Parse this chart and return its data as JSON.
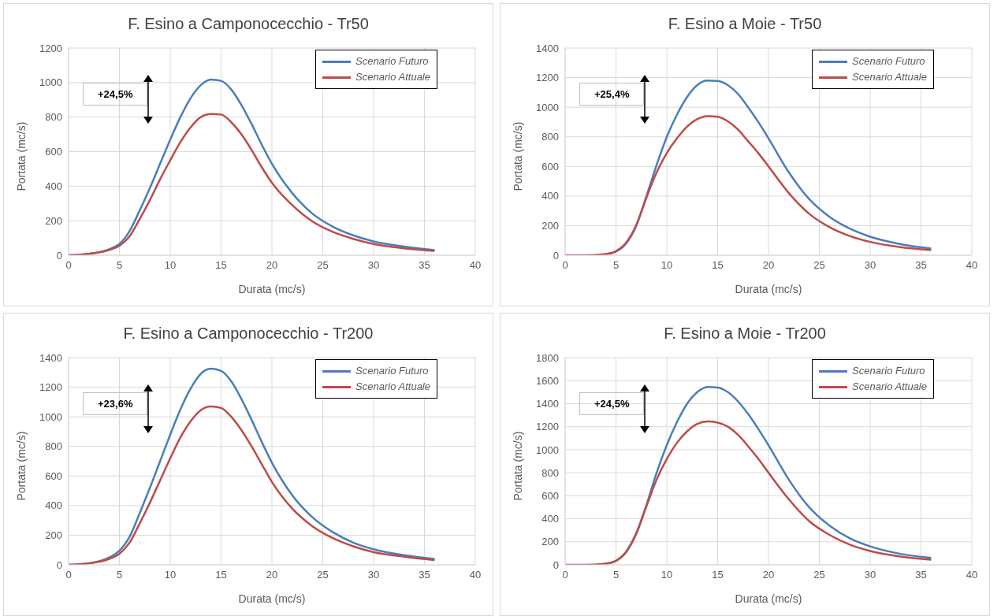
{
  "chart_data": [
    {
      "type": "line",
      "title": "F. Esino a Camponocecchio - Tr50",
      "xlabel": "Durata (mc/s)",
      "ylabel": "Portata (mc/s)",
      "x": [
        0,
        2,
        4,
        5,
        6,
        7,
        8,
        9,
        10,
        11,
        12,
        13,
        14,
        15,
        16,
        17,
        18,
        19,
        20,
        22,
        24,
        26,
        28,
        30,
        33,
        36
      ],
      "series": [
        {
          "name": "Scenario Futuro",
          "color": "#4a7ebb",
          "values": [
            0,
            8,
            35,
            65,
            140,
            260,
            390,
            530,
            670,
            800,
            910,
            985,
            1018,
            1010,
            960,
            870,
            760,
            640,
            530,
            360,
            240,
            165,
            115,
            80,
            50,
            30
          ]
        },
        {
          "name": "Scenario Attuale",
          "color": "#be4b48",
          "values": [
            0,
            8,
            30,
            55,
            110,
            210,
            320,
            440,
            550,
            655,
            740,
            800,
            818,
            815,
            770,
            700,
            610,
            510,
            420,
            290,
            195,
            135,
            95,
            65,
            40,
            25
          ]
        }
      ],
      "xlim": [
        0,
        40
      ],
      "xticks": [
        0,
        5,
        10,
        15,
        20,
        25,
        30,
        35,
        40
      ],
      "ylim": [
        0,
        1200
      ],
      "yticks": [
        0,
        200,
        400,
        600,
        800,
        1000,
        1200
      ],
      "grid": true,
      "legend": "top right",
      "annotations": [
        "+24,5%"
      ]
    },
    {
      "type": "line",
      "title": "F. Esino a Moie - Tr50",
      "xlabel": "Durata (mc/s)",
      "ylabel": "Portata (mc/s)",
      "x": [
        0,
        2,
        4,
        5,
        6,
        7,
        8,
        9,
        10,
        11,
        12,
        13,
        14,
        15,
        16,
        17,
        18,
        19,
        20,
        22,
        24,
        26,
        28,
        30,
        33,
        36
      ],
      "series": [
        {
          "name": "Scenario Futuro",
          "color": "#4a7ebb",
          "values": [
            null,
            null,
            8,
            25,
            80,
            200,
            400,
            610,
            800,
            950,
            1070,
            1150,
            1180,
            1178,
            1150,
            1090,
            1000,
            900,
            790,
            560,
            380,
            260,
            180,
            125,
            75,
            45
          ]
        },
        {
          "name": "Scenario Attuale",
          "color": "#be4b48",
          "values": [
            0,
            0,
            8,
            28,
            85,
            205,
            390,
            560,
            690,
            790,
            870,
            920,
            940,
            935,
            905,
            850,
            770,
            690,
            600,
            420,
            280,
            190,
            130,
            90,
            55,
            35
          ]
        }
      ],
      "xlim": [
        0,
        40
      ],
      "xticks": [
        0,
        5,
        10,
        15,
        20,
        25,
        30,
        35,
        40
      ],
      "ylim": [
        0,
        1400
      ],
      "yticks": [
        0,
        200,
        400,
        600,
        800,
        1000,
        1200,
        1400
      ],
      "grid": true,
      "legend": "top right",
      "annotations": [
        "+25,4%"
      ]
    },
    {
      "type": "line",
      "title": "F. Esino a Camponocecchio - Tr200",
      "xlabel": "Durata (mc/s)",
      "ylabel": "Portata (mc/s)",
      "x": [
        0,
        2,
        4,
        5,
        6,
        7,
        8,
        9,
        10,
        11,
        12,
        13,
        14,
        15,
        16,
        17,
        18,
        19,
        20,
        22,
        24,
        26,
        28,
        30,
        33,
        36
      ],
      "series": [
        {
          "name": "Scenario Futuro",
          "color": "#4a7ebb",
          "values": [
            0,
            10,
            50,
            95,
            190,
            350,
            520,
            700,
            880,
            1050,
            1190,
            1290,
            1325,
            1310,
            1240,
            1120,
            980,
            830,
            690,
            470,
            320,
            220,
            150,
            105,
            65,
            40
          ]
        },
        {
          "name": "Scenario Attuale",
          "color": "#be4b48",
          "values": [
            0,
            10,
            40,
            75,
            150,
            280,
            420,
            570,
            720,
            860,
            970,
            1045,
            1070,
            1060,
            1000,
            910,
            800,
            680,
            560,
            380,
            260,
            180,
            125,
            85,
            55,
            32
          ]
        }
      ],
      "xlim": [
        0,
        40
      ],
      "xticks": [
        0,
        5,
        10,
        15,
        20,
        25,
        30,
        35,
        40
      ],
      "ylim": [
        0,
        1400
      ],
      "yticks": [
        0,
        200,
        400,
        600,
        800,
        1000,
        1200,
        1400
      ],
      "grid": true,
      "legend": "top right",
      "annotations": [
        "+23,6%"
      ]
    },
    {
      "type": "line",
      "title": "F. Esino a Moie - Tr200",
      "xlabel": "Durata (mc/s)",
      "ylabel": "Portata (mc/s)",
      "x": [
        0,
        2,
        4,
        5,
        6,
        7,
        8,
        9,
        10,
        11,
        12,
        13,
        14,
        15,
        16,
        17,
        18,
        19,
        20,
        22,
        24,
        26,
        28,
        30,
        33,
        36
      ],
      "series": [
        {
          "name": "Scenario Futuro",
          "color": "#4a7ebb",
          "values": [
            null,
            null,
            10,
            35,
            110,
            270,
            520,
            800,
            1040,
            1240,
            1400,
            1500,
            1545,
            1540,
            1500,
            1420,
            1310,
            1180,
            1040,
            740,
            500,
            340,
            230,
            160,
            95,
            60
          ]
        },
        {
          "name": "Scenario Attuale",
          "color": "#be4b48",
          "values": [
            0,
            0,
            10,
            35,
            115,
            275,
            510,
            740,
            920,
            1060,
            1160,
            1225,
            1245,
            1235,
            1200,
            1130,
            1030,
            920,
            800,
            570,
            380,
            260,
            175,
            120,
            72,
            45
          ]
        }
      ],
      "xlim": [
        0,
        40
      ],
      "xticks": [
        0,
        5,
        10,
        15,
        20,
        25,
        30,
        35,
        40
      ],
      "ylim": [
        0,
        1800
      ],
      "yticks": [
        0,
        200,
        400,
        600,
        800,
        1000,
        1200,
        1400,
        1600,
        1800
      ],
      "grid": true,
      "legend": "top right",
      "annotations": [
        "+24,5%"
      ]
    }
  ]
}
